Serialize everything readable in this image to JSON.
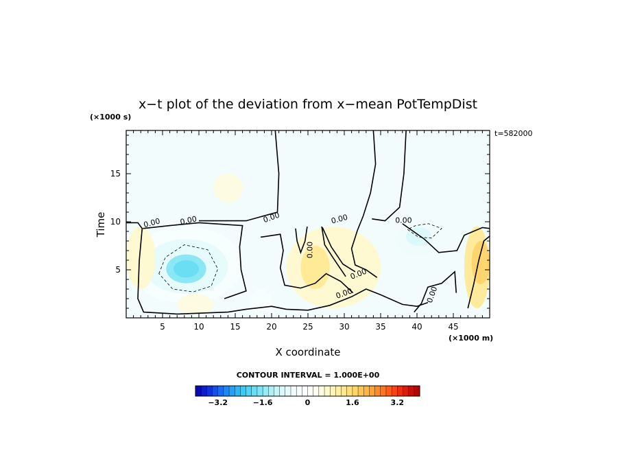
{
  "chart_data": {
    "type": "heatmap",
    "title": "x−t plot of the deviation from x−mean PotTempDist",
    "xlabel": "X coordinate",
    "ylabel": "Time",
    "x_unit": "(×1000 m)",
    "y_unit": "(×1000 s)",
    "time_stamp": "t=582000",
    "xlim": [
      0,
      50
    ],
    "ylim": [
      0,
      19.5
    ],
    "x_ticks": [
      5,
      10,
      15,
      20,
      25,
      30,
      35,
      40,
      45
    ],
    "y_ticks": [
      5,
      10,
      15
    ],
    "contour_interval_label": "CONTOUR INTERVAL = 1.000E+00",
    "contour_labels": [
      "0.00",
      "0.00",
      "0.00",
      "0.00",
      "0.00",
      "0.00",
      "0.00",
      "0.00",
      "0.00"
    ],
    "colorbar": {
      "min": -4,
      "max": 4,
      "step": 0.2,
      "tick_values": [
        -3.2,
        -1.6,
        0,
        1.6,
        3.2
      ],
      "tick_labels": [
        "−3.2",
        "−1.6",
        "0",
        "1.6",
        "3.2"
      ],
      "colors": [
        "#0a0ab4",
        "#0c1ec8",
        "#1034dc",
        "#1450e6",
        "#1a6cf0",
        "#1e88f4",
        "#24a0f6",
        "#2cb8f8",
        "#38caf8",
        "#4ed6f6",
        "#66def4",
        "#80e4f4",
        "#98eaf4",
        "#b0eff6",
        "#c6f4f8",
        "#d8f8fa",
        "#e6fafc",
        "#f0fcfc",
        "#f6fefe",
        "#fbffff",
        "#fffffa",
        "#fffdf0",
        "#fffbe0",
        "#fff8cc",
        "#fff4b8",
        "#fff0a4",
        "#ffe890",
        "#ffdf7c",
        "#ffd468",
        "#ffc656",
        "#ffb644",
        "#ffa236",
        "#ff8c2a",
        "#ff7420",
        "#ff5c18",
        "#f84412",
        "#ec2e0e",
        "#dc1c0a",
        "#c80e08",
        "#b40606"
      ]
    },
    "anomaly_cells": [
      {
        "x": [
          5.5,
          11
        ],
        "t": [
          3.6,
          6.6
        ],
        "value": -1.6
      },
      {
        "x": [
          6.5,
          10
        ],
        "t": [
          4.2,
          6.0
        ],
        "value": -2.0
      },
      {
        "x": [
          2.5,
          14
        ],
        "t": [
          2.5,
          8.2
        ],
        "value": -0.8
      },
      {
        "x": [
          0.5,
          16
        ],
        "t": [
          1.5,
          9.5
        ],
        "value": -0.4
      },
      {
        "x": [
          37,
          43
        ],
        "t": [
          6.5,
          9.8
        ],
        "value": -0.6
      },
      {
        "x": [
          38.5,
          42
        ],
        "t": [
          7.5,
          9.4
        ],
        "value": -1.0
      },
      {
        "x": [
          46.5,
          50
        ],
        "t": [
          1.0,
          9.5
        ],
        "value": 1.2
      },
      {
        "x": [
          47.5,
          50
        ],
        "t": [
          3.5,
          8.0
        ],
        "value": 1.8
      },
      {
        "x": [
          22,
          35
        ],
        "t": [
          1.0,
          9.5
        ],
        "value": 0.8
      },
      {
        "x": [
          24,
          28
        ],
        "t": [
          3.0,
          7.5
        ],
        "value": 1.2
      },
      {
        "x": [
          0,
          4
        ],
        "t": [
          3.0,
          9.5
        ],
        "value": 0.8
      },
      {
        "x": [
          12,
          16
        ],
        "t": [
          12,
          15
        ],
        "value": 0.4
      },
      {
        "x": [
          7,
          12
        ],
        "t": [
          0.3,
          2.5
        ],
        "value": 0.6
      },
      {
        "x": [
          17,
          20
        ],
        "t": [
          0.3,
          3.0
        ],
        "value": -0.4
      }
    ]
  }
}
